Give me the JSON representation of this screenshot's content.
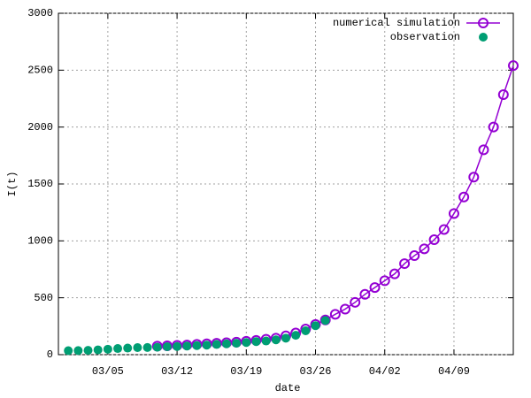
{
  "chart_data": {
    "type": "line",
    "xlabel": "date",
    "ylabel": "I(t)",
    "xlim": [
      "02/29",
      "04/15"
    ],
    "xticks": [
      "03/05",
      "03/12",
      "03/19",
      "03/26",
      "04/02",
      "04/09"
    ],
    "ylim": [
      0,
      3000
    ],
    "yticks": [
      0,
      500,
      1000,
      1500,
      2000,
      2500,
      3000
    ],
    "grid": true,
    "legend": "top-right",
    "series": [
      {
        "name": "numerical simulation",
        "color": "#9400d3",
        "style": "line-open-circle",
        "x": [
          "03/10",
          "03/11",
          "03/12",
          "03/13",
          "03/14",
          "03/15",
          "03/16",
          "03/17",
          "03/18",
          "03/19",
          "03/20",
          "03/21",
          "03/22",
          "03/23",
          "03/24",
          "03/25",
          "03/26",
          "03/27",
          "03/28",
          "03/29",
          "03/30",
          "03/31",
          "04/01",
          "04/02",
          "04/03",
          "04/04",
          "04/05",
          "04/06",
          "04/07",
          "04/08",
          "04/09",
          "04/10",
          "04/11",
          "04/12",
          "04/13",
          "04/14",
          "04/15"
        ],
        "values": [
          75,
          78,
          82,
          85,
          90,
          95,
          100,
          105,
          110,
          118,
          125,
          135,
          145,
          165,
          190,
          225,
          265,
          305,
          355,
          400,
          460,
          530,
          590,
          650,
          710,
          800,
          870,
          930,
          1010,
          1100,
          1240,
          1385,
          1560,
          1800,
          2000,
          2285,
          2540
        ]
      },
      {
        "name": "observation",
        "color": "#009e73",
        "style": "filled-circle",
        "x": [
          "03/01",
          "03/02",
          "03/03",
          "03/04",
          "03/05",
          "03/06",
          "03/07",
          "03/08",
          "03/09",
          "03/10",
          "03/11",
          "03/12",
          "03/13",
          "03/14",
          "03/15",
          "03/16",
          "03/17",
          "03/18",
          "03/19",
          "03/20",
          "03/21",
          "03/22",
          "03/23",
          "03/24",
          "03/25",
          "03/26",
          "03/27"
        ],
        "values": [
          35,
          36,
          38,
          42,
          48,
          54,
          58,
          62,
          63,
          65,
          70,
          72,
          76,
          80,
          84,
          90,
          95,
          100,
          107,
          115,
          120,
          130,
          145,
          170,
          210,
          255,
          300
        ]
      }
    ]
  }
}
